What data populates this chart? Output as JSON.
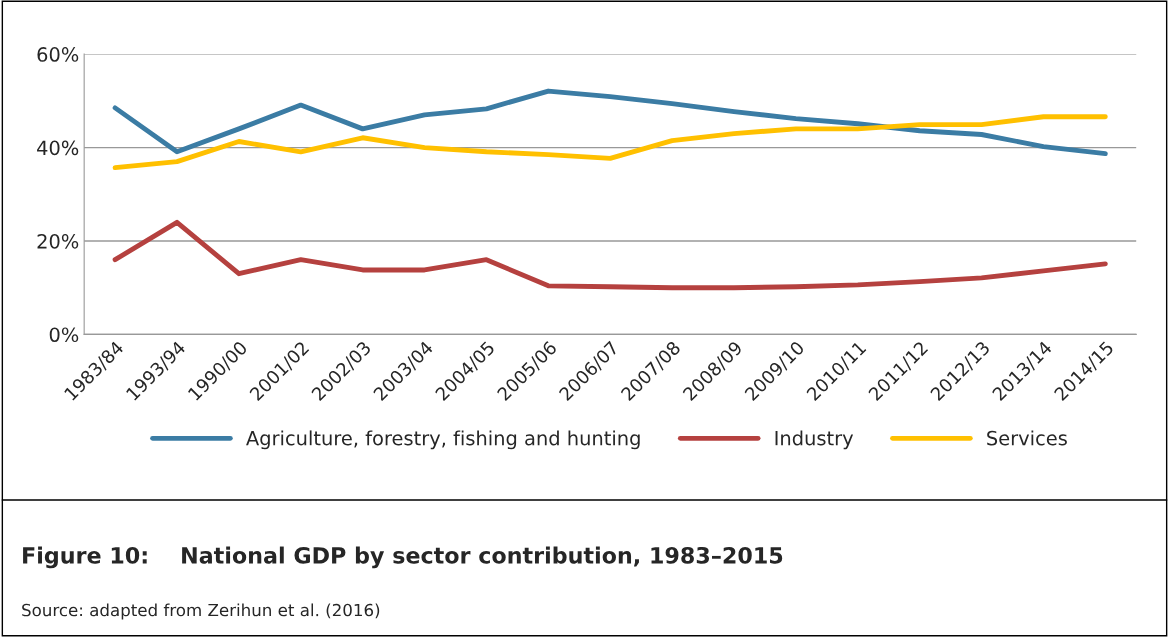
{
  "chart_data": {
    "type": "line",
    "title": "Figure 10:    National GDP by sector contribution, 1983–2015",
    "annotations": [
      "Source: adapted from Zerihun et al. (2016)"
    ],
    "categories": [
      "1983/84",
      "1993/94",
      "1990/00",
      "2001/02",
      "2002/03",
      "2003/04",
      "2004/05",
      "2005/06",
      "2006/07",
      "2007/08",
      "2008/09",
      "2009/10",
      "2010/11",
      "2011/12",
      "2012/13",
      "2013/14",
      "2014/15"
    ],
    "series": [
      {
        "name": "Agriculture, forestry, fishing and hunting",
        "color": "#3b7ca4",
        "values": [
          48.5,
          39.1,
          44,
          49.1,
          44,
          47,
          48.3,
          52.1,
          50.9,
          49.4,
          47.7,
          46.2,
          45.1,
          43.6,
          42.8,
          40.2,
          38.7
        ]
      },
      {
        "name": "Industry",
        "color": "#b5413f",
        "values": [
          16,
          24,
          13,
          16,
          13.8,
          13.8,
          16,
          10.4,
          10.2,
          10,
          10,
          10.2,
          10.6,
          11.3,
          12.1,
          13.6,
          15.1
        ]
      },
      {
        "name": "Services",
        "color": "#ffc000",
        "values": [
          35.7,
          37,
          41.3,
          39.1,
          42.1,
          40,
          39.1,
          38.5,
          37.7,
          41.5,
          43,
          44,
          44,
          44.9,
          44.9,
          46.6,
          46.6
        ]
      }
    ],
    "ylim": [
      0,
      60
    ],
    "yticks": [
      {
        "value": 0,
        "label": "0%"
      },
      {
        "value": 20,
        "label": "20%"
      },
      {
        "value": 40,
        "label": "40%"
      },
      {
        "value": 60,
        "label": "60%"
      }
    ],
    "grid": "y",
    "legend": "bottom",
    "marker": "none",
    "line_style": "solid"
  }
}
